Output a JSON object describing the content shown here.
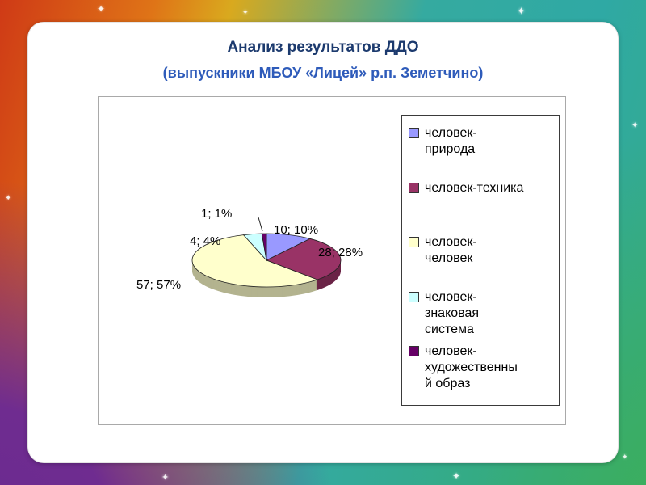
{
  "slide": {
    "title": "Анализ результатов ДДО",
    "subtitle": "(выпускники МБОУ «Лицей» р.п. Земетчино)"
  },
  "chart_data": {
    "type": "pie",
    "title": "",
    "effect": "3d-pie",
    "legend_position": "right",
    "labels": [
      "человек-природа",
      "человек-техника",
      "человек-человек",
      "человек-знаковая система",
      "человек-художественный образ"
    ],
    "values": [
      10,
      28,
      57,
      4,
      1
    ],
    "percents": [
      10,
      28,
      57,
      4,
      1
    ],
    "data_labels": [
      "10; 10%",
      "28; 28%",
      "57; 57%",
      "4; 4%",
      "1; 1%"
    ],
    "colors": [
      "#9999FF",
      "#993366",
      "#FFFFCC",
      "#CCFFFF",
      "#660066"
    ]
  },
  "legend": {
    "items": [
      {
        "text": "человек-\nприрода"
      },
      {
        "text": "человек-техника"
      },
      {
        "text": "человек-\nчеловек"
      },
      {
        "text": "человек-\nзнаковая\nсистема"
      },
      {
        "text": "человек-\nхудожественны\nй образ"
      }
    ]
  },
  "decor": {
    "sparkle_glyph": "✦"
  },
  "palette": {
    "frame_red": "#CF3A16",
    "frame_orange": "#DF7417",
    "frame_teal": "#2FA9A4",
    "frame_green": "#3CAE58",
    "frame_purple": "#6A2A8F",
    "slide_background": "#FFFFFF",
    "title_color": "#1C3A6E",
    "subtitle_color": "#2E5BBA"
  }
}
